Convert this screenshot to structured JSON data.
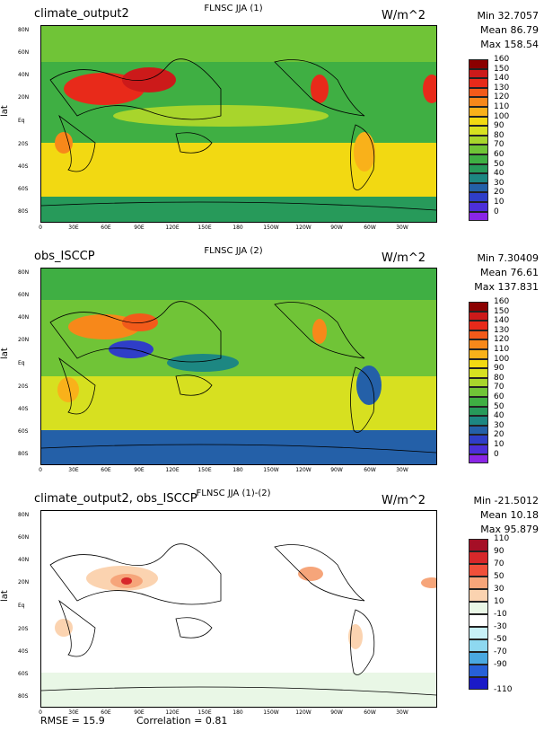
{
  "panels": [
    {
      "title": "climate_output2",
      "subtitle": "FLNSC JJA (1)",
      "units": "W/m^2",
      "min": "Min 32.7057",
      "mean": "Mean 86.79",
      "max": "Max 158.54",
      "ylabel": "lat",
      "colorbar": [
        "160",
        "150",
        "140",
        "130",
        "120",
        "110",
        "100",
        "90",
        "80",
        "70",
        "60",
        "50",
        "40",
        "30",
        "20",
        "10",
        "0"
      ],
      "colors": [
        "#8b0000",
        "#cc1a1a",
        "#e82a1a",
        "#f25a1a",
        "#f7881a",
        "#f9b11a",
        "#f2d912",
        "#d7e020",
        "#a8d52c",
        "#70c437",
        "#3faf43",
        "#279a5a",
        "#1d8782",
        "#2460a8",
        "#2f3ec8",
        "#4c2fd9",
        "#8a26e6"
      ]
    },
    {
      "title": "obs_ISCCP",
      "subtitle": "FLNSC JJA (2)",
      "units": "W/m^2",
      "min": "Min 7.30409",
      "mean": "Mean 76.61",
      "max": "Max 137.831",
      "ylabel": "lat",
      "colorbar": [
        "160",
        "150",
        "140",
        "130",
        "120",
        "110",
        "100",
        "90",
        "80",
        "70",
        "60",
        "50",
        "40",
        "30",
        "20",
        "10",
        "0"
      ],
      "colors": [
        "#8b0000",
        "#cc1a1a",
        "#e82a1a",
        "#f25a1a",
        "#f7881a",
        "#f9b11a",
        "#f2d912",
        "#d7e020",
        "#a8d52c",
        "#70c437",
        "#3faf43",
        "#279a5a",
        "#1d8782",
        "#2460a8",
        "#2f3ec8",
        "#4c2fd9",
        "#8a26e6"
      ]
    },
    {
      "title": "climate_output2, obs_ISCCP",
      "subtitle": "FLNSC JJA (1)-(2)",
      "units": "W/m^2",
      "min": "Min -21.5012",
      "mean": "Mean 10.18",
      "max": "Max 95.879",
      "ylabel": "lat",
      "colorbar": [
        "110",
        "90",
        "70",
        "50",
        "30",
        "10",
        "-10",
        "-30",
        "-50",
        "-70",
        "-90",
        "-110"
      ],
      "colors": [
        "#a50f26",
        "#d7282a",
        "#f0503a",
        "#f6a57a",
        "#fbd3b0",
        "#e9f7e6",
        "#ffffff",
        "#c7f0f7",
        "#8ed8f0",
        "#4aa8e0",
        "#2760d8",
        "#1a1ac8"
      ]
    }
  ],
  "lat_ticks": [
    "80N",
    "60N",
    "40N",
    "20N",
    "Eq",
    "20S",
    "40S",
    "60S",
    "80S"
  ],
  "lon_ticks": [
    "0",
    "30E",
    "60E",
    "90E",
    "120E",
    "150E",
    "180",
    "150W",
    "120W",
    "90W",
    "60W",
    "30W"
  ],
  "footer": {
    "rmse": "RMSE = 15.9",
    "correlation": "Correlation = 0.81"
  }
}
